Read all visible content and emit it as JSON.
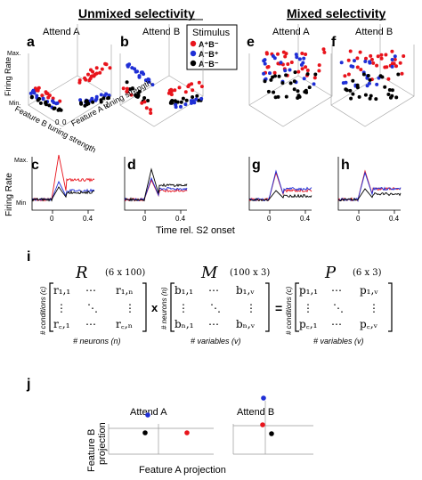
{
  "headers": {
    "unmixed": "Unmixed selectivity",
    "mixed": "Mixed selectivity"
  },
  "panel_letters": {
    "a": "a",
    "b": "b",
    "c": "c",
    "d": "d",
    "e": "e",
    "f": "f",
    "g": "g",
    "h": "h",
    "i": "i",
    "j": "j"
  },
  "attend": {
    "a": "Attend A",
    "b": "Attend B"
  },
  "legend": {
    "title": "Stimulus",
    "items": [
      {
        "label": "A⁺B⁻",
        "color": "#e8141c"
      },
      {
        "label": "A⁻B⁺",
        "color": "#1f2fd6"
      },
      {
        "label": "A⁻B⁻",
        "color": "#000000"
      }
    ]
  },
  "scatter3d": {
    "y_label": "Firing Rate",
    "y_max": "Max.",
    "y_min": "Min.",
    "x1_label": "Feature B tuning strength",
    "x2_label": "Feature A tuning strength",
    "tick0": "0",
    "tick1": "1"
  },
  "psth": {
    "y_label": "Firing Rate",
    "y_max": "Max.",
    "y_min": "Min",
    "tick0": "0",
    "tick04": "0.4",
    "x_label": "Time rel. S2 onset"
  },
  "matrix": {
    "R": "R",
    "R_dim": "(6 x 100)",
    "M": "M",
    "M_dim": "(100 x 3)",
    "P": "P",
    "P_dim": "(6 x 3)",
    "times": "x",
    "equals": "=",
    "cond_label": "# conditions (c)",
    "neur_label": "# neurons (n)",
    "var_label": "# variables (v)",
    "r11": "r₁,₁",
    "r1n": "r₁,ₙ",
    "rc1": "r꜀,₁",
    "rcn": "r꜀,ₙ",
    "b11": "b₁,₁",
    "b1v": "b₁,ᵥ",
    "bn1": "bₙ,₁",
    "bnv": "bₙ,ᵥ",
    "p11": "p₁,₁",
    "p1v": "p₁,ᵥ",
    "pc1": "p꜀,₁",
    "pcv": "p꜀,ᵥ",
    "cdots": "⋯",
    "vdots": "⋮",
    "ddots": "⋱"
  },
  "projection": {
    "y_label_1": "Feature B",
    "y_label_2": "projection",
    "x_label": "Feature A projection"
  }
}
